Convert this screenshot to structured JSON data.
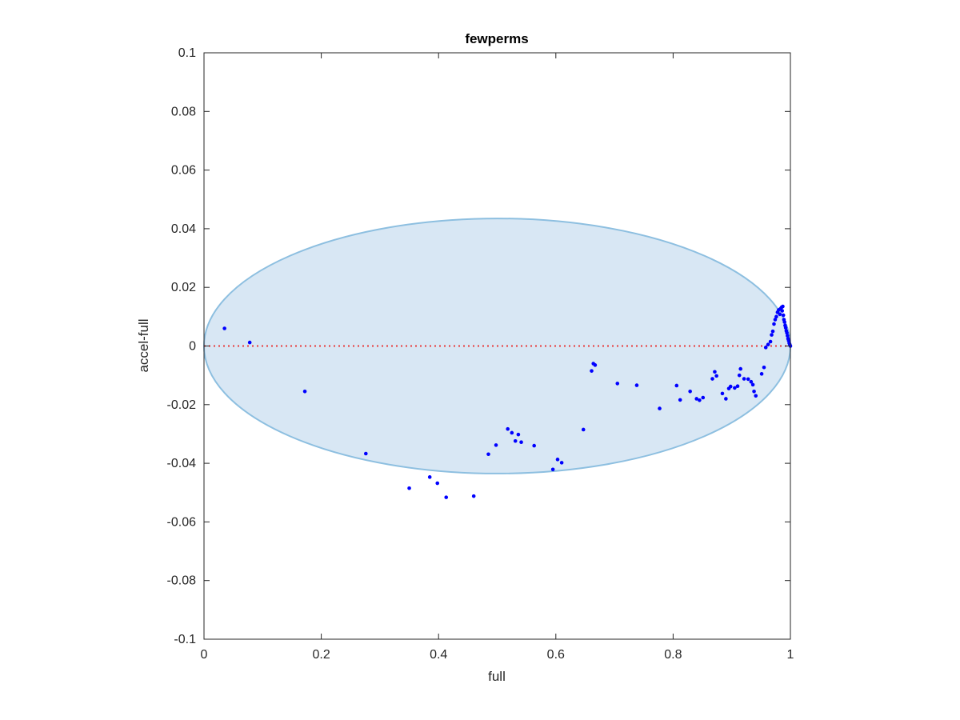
{
  "chart_data": {
    "type": "scatter",
    "title": "fewperms",
    "xlabel": "full",
    "ylabel": "accel-full",
    "xlim": [
      0,
      1
    ],
    "ylim": [
      -0.1,
      0.1
    ],
    "x_ticks": [
      0,
      0.2,
      0.4,
      0.6,
      0.8,
      1
    ],
    "x_tick_labels": [
      "0",
      "0.2",
      "0.4",
      "0.6",
      "0.8",
      "1"
    ],
    "y_ticks": [
      -0.1,
      -0.08,
      -0.06,
      -0.04,
      -0.02,
      0,
      0.02,
      0.04,
      0.06,
      0.08,
      0.1
    ],
    "y_tick_labels": [
      "-0.1",
      "-0.08",
      "-0.06",
      "-0.04",
      "-0.02",
      "0",
      "0.02",
      "0.04",
      "0.06",
      "0.08",
      "0.1"
    ],
    "grid": false,
    "box": true,
    "ellipse": {
      "cx": 0.5,
      "cy": 0.0,
      "rx": 0.5,
      "ry": 0.0435,
      "fill": "#d8e7f4",
      "stroke": "#8dbfe0"
    },
    "reference_line": {
      "y": 0,
      "style": "dotted",
      "color": "#e83a3a"
    },
    "marker_color": "#0000ff",
    "points": [
      [
        0.035,
        0.006
      ],
      [
        0.078,
        0.0012
      ],
      [
        0.172,
        -0.0155
      ],
      [
        0.276,
        -0.0367
      ],
      [
        0.35,
        -0.0485
      ],
      [
        0.385,
        -0.0447
      ],
      [
        0.398,
        -0.0468
      ],
      [
        0.413,
        -0.0516
      ],
      [
        0.46,
        -0.0512
      ],
      [
        0.485,
        -0.0369
      ],
      [
        0.498,
        -0.0338
      ],
      [
        0.518,
        -0.0283
      ],
      [
        0.525,
        -0.0296
      ],
      [
        0.531,
        -0.0324
      ],
      [
        0.536,
        -0.0302
      ],
      [
        0.541,
        -0.0328
      ],
      [
        0.563,
        -0.034
      ],
      [
        0.595,
        -0.0421
      ],
      [
        0.603,
        -0.0387
      ],
      [
        0.61,
        -0.0398
      ],
      [
        0.647,
        -0.0285
      ],
      [
        0.661,
        -0.0085
      ],
      [
        0.664,
        -0.006
      ],
      [
        0.667,
        -0.0065
      ],
      [
        0.705,
        -0.0128
      ],
      [
        0.738,
        -0.0134
      ],
      [
        0.777,
        -0.0213
      ],
      [
        0.806,
        -0.0135
      ],
      [
        0.812,
        -0.0184
      ],
      [
        0.829,
        -0.0155
      ],
      [
        0.84,
        -0.018
      ],
      [
        0.845,
        -0.0185
      ],
      [
        0.851,
        -0.0176
      ],
      [
        0.867,
        -0.0112
      ],
      [
        0.871,
        -0.0088
      ],
      [
        0.874,
        -0.0102
      ],
      [
        0.884,
        -0.0162
      ],
      [
        0.89,
        -0.018
      ],
      [
        0.895,
        -0.0145
      ],
      [
        0.898,
        -0.0138
      ],
      [
        0.905,
        -0.0143
      ],
      [
        0.91,
        -0.0137
      ],
      [
        0.913,
        -0.01
      ],
      [
        0.915,
        -0.0078
      ],
      [
        0.921,
        -0.0112
      ],
      [
        0.928,
        -0.0113
      ],
      [
        0.933,
        -0.0122
      ],
      [
        0.936,
        -0.0132
      ],
      [
        0.938,
        -0.0155
      ],
      [
        0.941,
        -0.017
      ],
      [
        0.951,
        -0.0095
      ],
      [
        0.955,
        -0.0073
      ],
      [
        0.958,
        -0.0005
      ],
      [
        0.962,
        0.0005
      ],
      [
        0.966,
        0.0015
      ],
      [
        0.968,
        0.0038
      ],
      [
        0.97,
        0.005
      ],
      [
        0.972,
        0.0075
      ],
      [
        0.974,
        0.009
      ],
      [
        0.976,
        0.01
      ],
      [
        0.978,
        0.0115
      ],
      [
        0.98,
        0.0123
      ],
      [
        0.982,
        0.0108
      ],
      [
        0.983,
        0.0127
      ],
      [
        0.985,
        0.0132
      ],
      [
        0.986,
        0.012
      ],
      [
        0.987,
        0.0135
      ],
      [
        0.988,
        0.0105
      ],
      [
        0.989,
        0.009
      ],
      [
        0.99,
        0.0082
      ],
      [
        0.991,
        0.007
      ],
      [
        0.992,
        0.0062
      ],
      [
        0.993,
        0.0052
      ],
      [
        0.994,
        0.0045
      ],
      [
        0.995,
        0.0035
      ],
      [
        0.996,
        0.0025
      ],
      [
        0.997,
        0.0018
      ],
      [
        0.998,
        0.001
      ],
      [
        0.999,
        0.0005
      ],
      [
        1.0,
        0.0
      ]
    ]
  }
}
